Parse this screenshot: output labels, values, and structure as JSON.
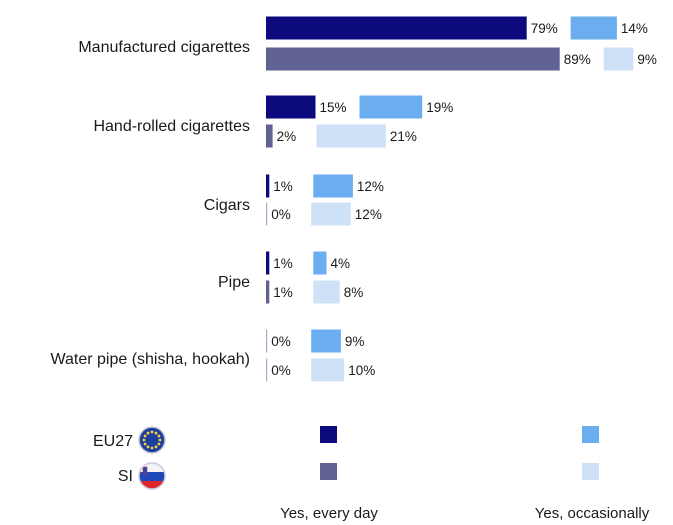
{
  "chart_data": {
    "type": "bar",
    "orientation": "horizontal",
    "categories": [
      "Manufactured cigarettes",
      "Hand-rolled cigarettes",
      "Cigars",
      "Pipe",
      "Water pipe (shisha, hookah)"
    ],
    "groups": [
      "EU27",
      "SI"
    ],
    "series": [
      {
        "name": "Yes, every day",
        "values": {
          "EU27": [
            79,
            15,
            1,
            1,
            0
          ],
          "SI": [
            89,
            2,
            0,
            1,
            0
          ]
        }
      },
      {
        "name": "Yes, occasionally",
        "values": {
          "EU27": [
            14,
            19,
            12,
            4,
            9
          ],
          "SI": [
            9,
            21,
            12,
            8,
            10
          ]
        }
      }
    ],
    "unit": "%",
    "legend_placement": "bottom",
    "grid": false
  },
  "colors": {
    "EU27_daily": "#0d0a7e",
    "EU27_occasional": "#6aaef0",
    "SI_daily": "#5f6292",
    "SI_occasional": "#cfe1f7"
  },
  "legend": {
    "groups": [
      {
        "label": "EU27",
        "icon": "eu-flag-icon"
      },
      {
        "label": "SI",
        "icon": "slovenia-flag-icon"
      }
    ],
    "columns": [
      "Yes, every day",
      "Yes, occasionally"
    ]
  }
}
